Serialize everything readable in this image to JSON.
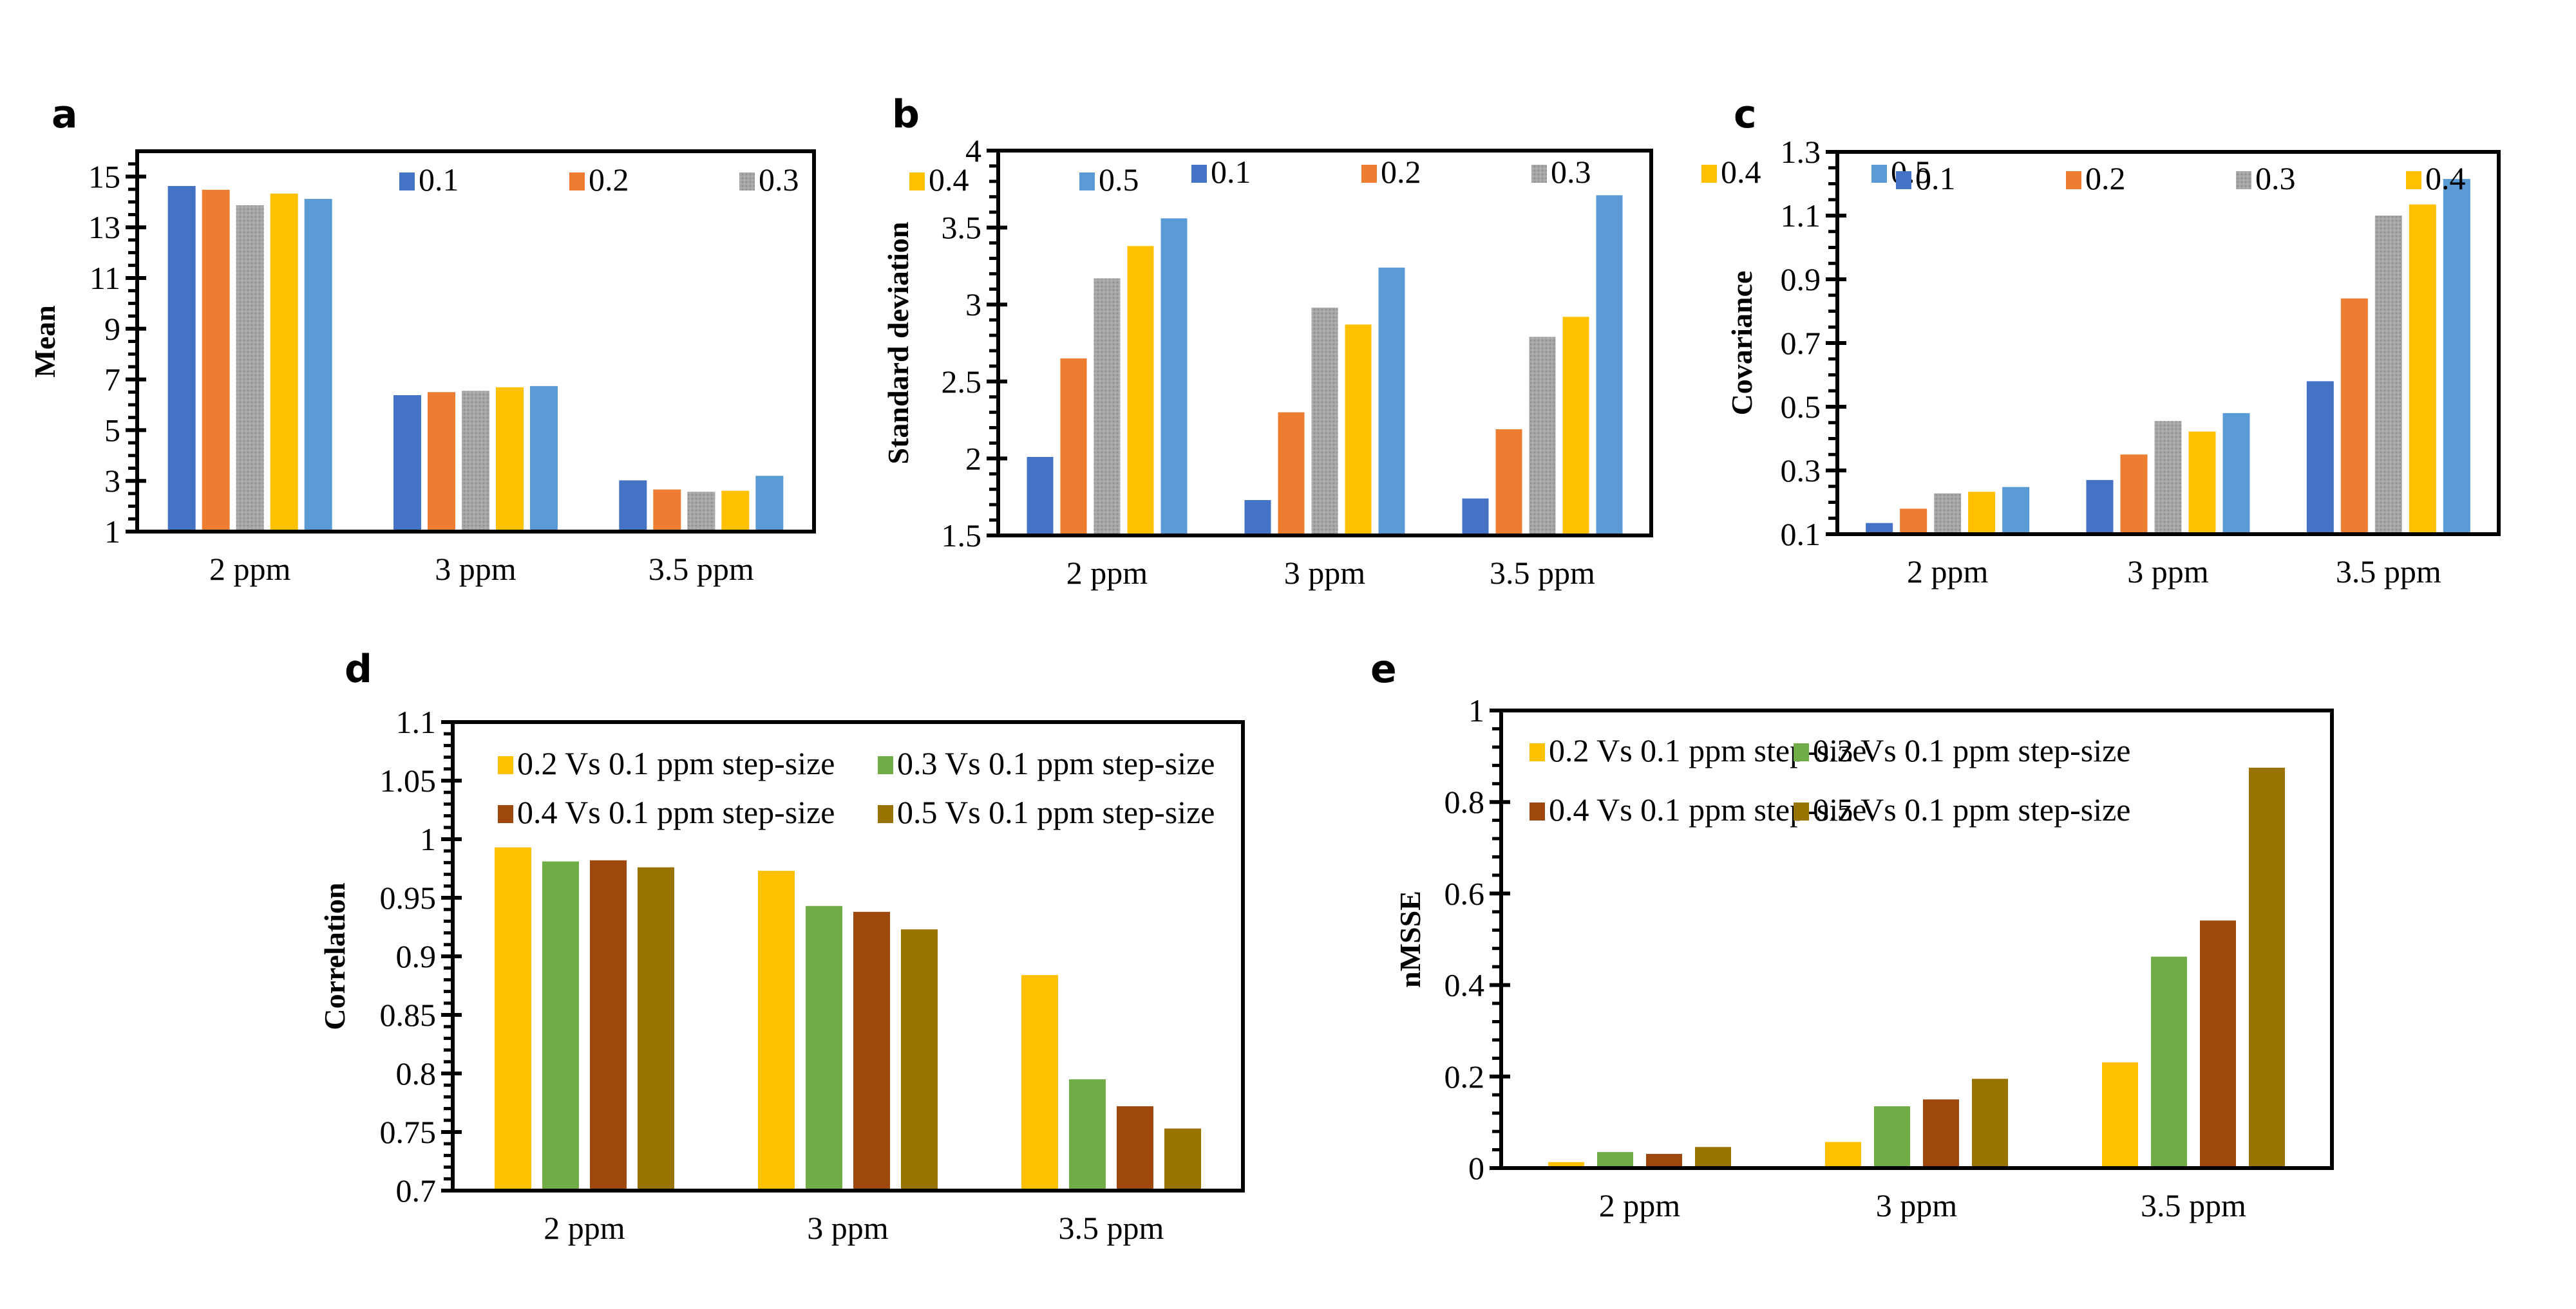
{
  "chart_data": [
    {
      "id": "a",
      "panel_label": "a",
      "type": "bar",
      "title": "",
      "xlabel": "",
      "ylabel": "Mean",
      "categories": [
        "2 ppm",
        "3 ppm",
        "3.5 ppm"
      ],
      "ylim": [
        1,
        16
      ],
      "yticks": [
        1,
        3,
        5,
        7,
        9,
        11,
        13,
        15
      ],
      "ytick_labels": [
        "1",
        "3",
        "5",
        "7",
        "9",
        "11",
        "13",
        "15"
      ],
      "minor_tick_step": 0.5,
      "grid": false,
      "legend_position": "top-right",
      "legend_rows": 1,
      "series": [
        {
          "name": "0.1",
          "color": "#4472C4",
          "values": [
            14.63,
            6.38,
            3.02
          ]
        },
        {
          "name": "0.2",
          "color": "#ED7D31",
          "values": [
            14.48,
            6.5,
            2.66
          ]
        },
        {
          "name": "0.3",
          "color": "#A5A5A5",
          "pattern": "dotted",
          "values": [
            13.87,
            6.55,
            2.57
          ]
        },
        {
          "name": "0.4",
          "color": "#FFC000",
          "values": [
            14.33,
            6.69,
            2.61
          ]
        },
        {
          "name": "0.5",
          "color": "#5B9BD5",
          "values": [
            14.12,
            6.74,
            3.2
          ]
        }
      ]
    },
    {
      "id": "b",
      "panel_label": "b",
      "type": "bar",
      "title": "",
      "xlabel": "",
      "ylabel": "Standard deviation",
      "categories": [
        "2 ppm",
        "3 ppm",
        "3.5 ppm"
      ],
      "ylim": [
        1.5,
        4
      ],
      "yticks": [
        1.5,
        2,
        2.5,
        3,
        3.5,
        4
      ],
      "ytick_labels": [
        "1.5",
        "2",
        "2.5",
        "3",
        "3.5",
        "4"
      ],
      "minor_tick_step": 0.1,
      "grid": false,
      "legend_position": "top-right",
      "legend_rows": 1,
      "series": [
        {
          "name": "0.1",
          "color": "#4472C4",
          "values": [
            2.01,
            1.73,
            1.74
          ]
        },
        {
          "name": "0.2",
          "color": "#ED7D31",
          "values": [
            2.65,
            2.3,
            2.19
          ]
        },
        {
          "name": "0.3",
          "color": "#A5A5A5",
          "pattern": "dotted",
          "values": [
            3.17,
            2.98,
            2.79
          ]
        },
        {
          "name": "0.4",
          "color": "#FFC000",
          "values": [
            3.38,
            2.87,
            2.92
          ]
        },
        {
          "name": "0.5",
          "color": "#5B9BD5",
          "values": [
            3.56,
            3.24,
            3.71
          ]
        }
      ]
    },
    {
      "id": "c",
      "panel_label": "c",
      "type": "bar",
      "title": "",
      "xlabel": "",
      "ylabel": "Covariance",
      "categories": [
        "2 ppm",
        "3 ppm",
        "3.5 ppm"
      ],
      "ylim": [
        0.1,
        1.3
      ],
      "yticks": [
        0.1,
        0.3,
        0.5,
        0.7,
        0.9,
        1.1,
        1.3
      ],
      "ytick_labels": [
        "0.1",
        "0.3",
        "0.5",
        "0.7",
        "0.9",
        "1.1",
        "1.3"
      ],
      "minor_tick_step": 0.05,
      "grid": false,
      "legend_position": "top-left",
      "legend_rows": 1,
      "series": [
        {
          "name": "0.1",
          "color": "#4472C4",
          "values": [
            0.135,
            0.27,
            0.58
          ]
        },
        {
          "name": "0.2",
          "color": "#ED7D31",
          "values": [
            0.18,
            0.35,
            0.84
          ]
        },
        {
          "name": "0.3",
          "color": "#A5A5A5",
          "pattern": "dotted",
          "values": [
            0.228,
            0.455,
            1.1
          ]
        },
        {
          "name": "0.4",
          "color": "#FFC000",
          "values": [
            0.233,
            0.422,
            1.135
          ]
        },
        {
          "name": "0.5",
          "color": "#5B9BD5",
          "values": [
            0.248,
            0.48,
            1.215
          ]
        }
      ]
    },
    {
      "id": "d",
      "panel_label": "d",
      "type": "bar",
      "title": "",
      "xlabel": "",
      "ylabel": "Correlation",
      "categories": [
        "2 ppm",
        "3 ppm",
        "3.5 ppm"
      ],
      "ylim": [
        0.7,
        1.1
      ],
      "yticks": [
        0.7,
        0.75,
        0.8,
        0.85,
        0.9,
        0.95,
        1,
        1.05,
        1.1
      ],
      "ytick_labels": [
        "0.7",
        "0.75",
        "0.8",
        "0.85",
        "0.9",
        "0.95",
        "1",
        "1.05",
        "1.1"
      ],
      "minor_tick_step": 0.01,
      "grid": false,
      "legend_position": "top",
      "legend_rows": 2,
      "series": [
        {
          "name": "0.2 Vs 0.1 ppm step-size",
          "color": "#FFC000",
          "values": [
            0.993,
            0.973,
            0.884
          ]
        },
        {
          "name": "0.3 Vs 0.1 ppm step-size",
          "color": "#70AD47",
          "values": [
            0.981,
            0.943,
            0.795
          ]
        },
        {
          "name": "0.4 Vs 0.1 ppm step-size",
          "color": "#9E480E",
          "values": [
            0.982,
            0.938,
            0.772
          ]
        },
        {
          "name": "0.5 Vs 0.1 ppm step-size",
          "color": "#997300",
          "values": [
            0.976,
            0.923,
            0.753
          ]
        }
      ]
    },
    {
      "id": "e",
      "panel_label": "e",
      "type": "bar",
      "title": "",
      "xlabel": "",
      "ylabel": "nMSSE",
      "categories": [
        "2 ppm",
        "3 ppm",
        "3.5 ppm"
      ],
      "ylim": [
        0,
        1
      ],
      "yticks": [
        0,
        0.2,
        0.4,
        0.6,
        0.8,
        1
      ],
      "ytick_labels": [
        "0",
        "0.2",
        "0.4",
        "0.6",
        "0.8",
        "1"
      ],
      "minor_tick_step": 0.04,
      "grid": false,
      "legend_position": "top-left",
      "legend_rows": 2,
      "series": [
        {
          "name": "0.2 Vs 0.1 ppm step-size",
          "color": "#FFC000",
          "values": [
            0.013,
            0.057,
            0.231
          ]
        },
        {
          "name": "0.3 Vs 0.1 ppm step-size",
          "color": "#70AD47",
          "values": [
            0.035,
            0.135,
            0.462
          ]
        },
        {
          "name": "0.4 Vs 0.1 ppm step-size",
          "color": "#9E480E",
          "values": [
            0.031,
            0.15,
            0.541
          ]
        },
        {
          "name": "0.5 Vs 0.1 ppm step-size",
          "color": "#997300",
          "values": [
            0.046,
            0.195,
            0.875
          ]
        }
      ]
    }
  ]
}
